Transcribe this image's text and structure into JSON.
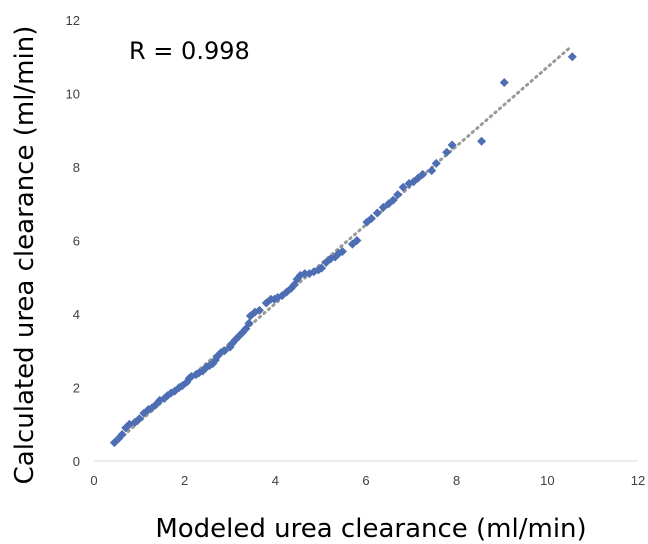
{
  "chart_data": {
    "type": "scatter",
    "xlabel": "Modeled urea clearance (ml/min)",
    "ylabel": "Calculated urea clearance (ml/min)",
    "xlim": [
      0,
      12
    ],
    "ylim": [
      0,
      12
    ],
    "xticks": [
      "0",
      "2",
      "4",
      "6",
      "8",
      "10",
      "12"
    ],
    "yticks": [
      "0",
      "2",
      "4",
      "6",
      "8",
      "10",
      "12"
    ],
    "grid": false,
    "legend": "none",
    "annotation": "R = 0.998",
    "trendline": {
      "style": "dotted",
      "color": "#9a9a9a",
      "x": [
        0.45,
        10.5
      ],
      "y": [
        0.48,
        11.25
      ]
    },
    "marker": {
      "shape": "diamond",
      "color": "#4e6eb3"
    },
    "points": [
      [
        0.45,
        0.5
      ],
      [
        0.55,
        0.62
      ],
      [
        0.62,
        0.72
      ],
      [
        0.7,
        0.9
      ],
      [
        0.78,
        1.0
      ],
      [
        0.9,
        1.05
      ],
      [
        1.0,
        1.15
      ],
      [
        1.1,
        1.3
      ],
      [
        1.2,
        1.4
      ],
      [
        1.28,
        1.45
      ],
      [
        1.38,
        1.55
      ],
      [
        1.45,
        1.65
      ],
      [
        1.55,
        1.7
      ],
      [
        1.62,
        1.78
      ],
      [
        1.7,
        1.85
      ],
      [
        1.78,
        1.9
      ],
      [
        1.88,
        2.0
      ],
      [
        1.95,
        2.05
      ],
      [
        2.05,
        2.15
      ],
      [
        2.1,
        2.25
      ],
      [
        2.15,
        2.3
      ],
      [
        2.25,
        2.35
      ],
      [
        2.32,
        2.4
      ],
      [
        2.4,
        2.45
      ],
      [
        2.48,
        2.55
      ],
      [
        2.55,
        2.6
      ],
      [
        2.62,
        2.65
      ],
      [
        2.68,
        2.75
      ],
      [
        2.72,
        2.85
      ],
      [
        2.8,
        2.95
      ],
      [
        2.88,
        3.0
      ],
      [
        3.0,
        3.1
      ],
      [
        3.05,
        3.2
      ],
      [
        3.12,
        3.3
      ],
      [
        3.2,
        3.4
      ],
      [
        3.28,
        3.5
      ],
      [
        3.35,
        3.6
      ],
      [
        3.42,
        3.75
      ],
      [
        3.45,
        3.95
      ],
      [
        3.55,
        4.05
      ],
      [
        3.65,
        4.1
      ],
      [
        3.8,
        4.3
      ],
      [
        3.9,
        4.4
      ],
      [
        3.98,
        4.4
      ],
      [
        4.05,
        4.45
      ],
      [
        4.15,
        4.5
      ],
      [
        4.25,
        4.6
      ],
      [
        4.35,
        4.7
      ],
      [
        4.42,
        4.8
      ],
      [
        4.48,
        4.95
      ],
      [
        4.55,
        5.05
      ],
      [
        4.65,
        5.1
      ],
      [
        4.75,
        5.1
      ],
      [
        4.85,
        5.15
      ],
      [
        4.95,
        5.2
      ],
      [
        5.02,
        5.25
      ],
      [
        5.12,
        5.4
      ],
      [
        5.22,
        5.5
      ],
      [
        5.32,
        5.55
      ],
      [
        5.4,
        5.65
      ],
      [
        5.48,
        5.7
      ],
      [
        5.7,
        5.9
      ],
      [
        5.8,
        6.0
      ],
      [
        6.02,
        6.5
      ],
      [
        6.12,
        6.6
      ],
      [
        6.25,
        6.75
      ],
      [
        6.38,
        6.9
      ],
      [
        6.5,
        7.0
      ],
      [
        6.6,
        7.1
      ],
      [
        6.7,
        7.25
      ],
      [
        6.82,
        7.45
      ],
      [
        6.95,
        7.55
      ],
      [
        7.05,
        7.6
      ],
      [
        7.15,
        7.7
      ],
      [
        7.25,
        7.8
      ],
      [
        7.45,
        7.9
      ],
      [
        7.55,
        8.1
      ],
      [
        7.78,
        8.4
      ],
      [
        7.9,
        8.6
      ],
      [
        8.55,
        8.7
      ],
      [
        9.05,
        10.3
      ],
      [
        10.55,
        11.0
      ]
    ]
  }
}
